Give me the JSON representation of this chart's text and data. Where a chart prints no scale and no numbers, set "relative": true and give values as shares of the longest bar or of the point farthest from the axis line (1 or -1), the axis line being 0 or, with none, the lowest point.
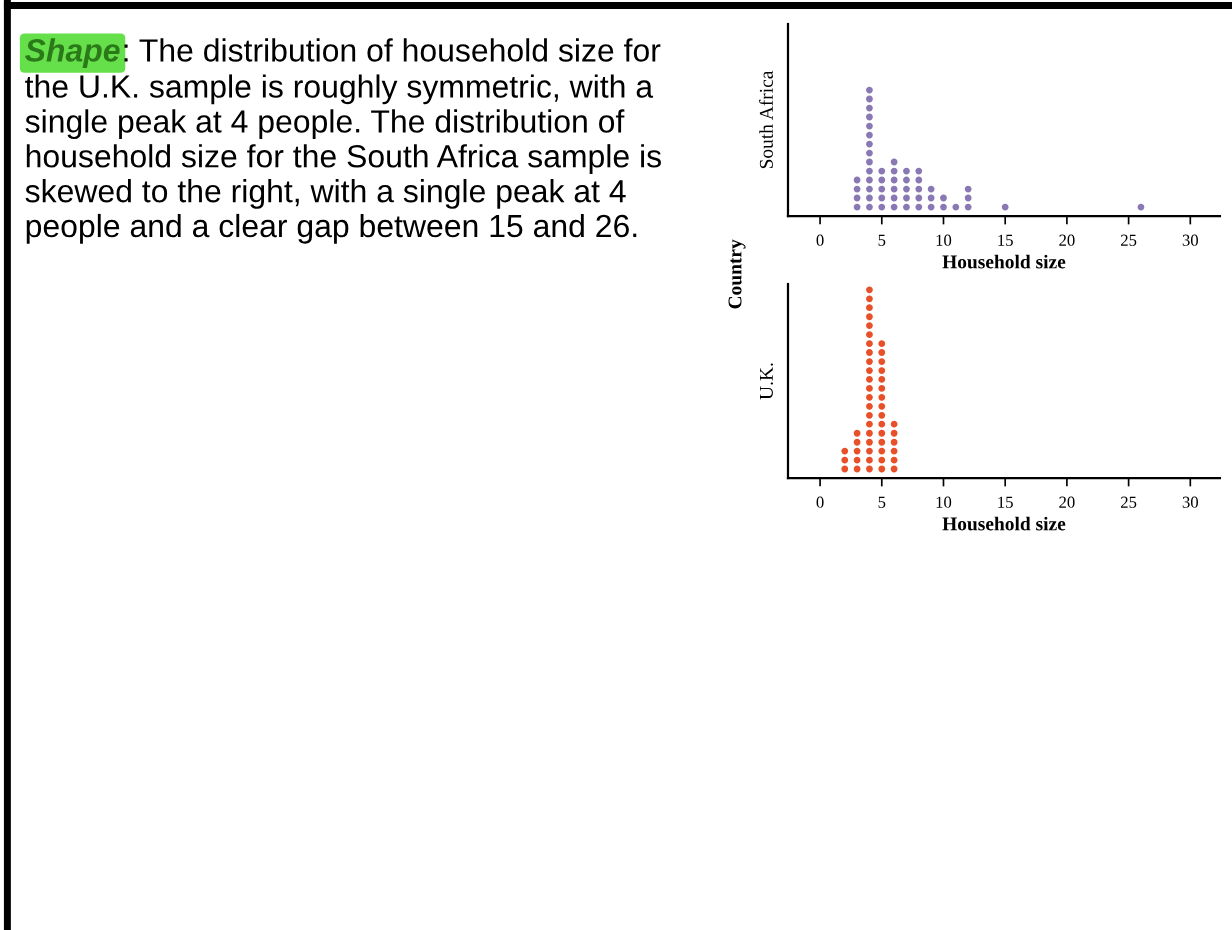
{
  "chart_data": [
    {
      "type": "scatter",
      "ylabel": "South Africa",
      "xlabel": "Household size",
      "xlim": [
        -2.6,
        32.4
      ],
      "xticks": [
        0,
        5,
        10,
        15,
        20,
        25,
        30
      ],
      "relative": true,
      "tick_labels": "x",
      "marker": "circle",
      "grid": false,
      "annotations": [
        "Shape",
        ": The distribution of household size for",
        "the U.K. sample is roughly symmetric, with a\nsingle peak at 4 people. The distribution of\nhousehold size for the South Africa sample is\nskewed to the right, with a single peak at 4\npeople and a clear gap between 15 and 26.",
        "Country"
      ],
      "series": [
        {
          "color": "#8a78b4",
          "x": [
            3,
            3,
            3,
            3,
            4,
            4,
            4,
            4,
            4,
            4,
            4,
            4,
            4,
            4,
            4,
            4,
            4,
            4,
            5,
            5,
            5,
            5,
            5,
            6,
            6,
            6,
            6,
            6,
            6,
            7,
            7,
            7,
            7,
            7,
            8,
            8,
            8,
            8,
            8,
            9,
            9,
            9,
            10,
            10,
            11,
            12,
            12,
            12,
            15,
            26
          ],
          "values": [
            0.071,
            0.143,
            0.214,
            0.286,
            0.071,
            0.143,
            0.214,
            0.286,
            0.357,
            0.429,
            0.5,
            0.571,
            0.643,
            0.714,
            0.786,
            0.857,
            0.929,
            1,
            0.071,
            0.143,
            0.214,
            0.286,
            0.357,
            0.071,
            0.143,
            0.214,
            0.286,
            0.357,
            0.429,
            0.071,
            0.143,
            0.214,
            0.286,
            0.357,
            0.071,
            0.143,
            0.214,
            0.286,
            0.357,
            0.071,
            0.143,
            0.214,
            0.071,
            0.143,
            0.071,
            0.071,
            0.143,
            0.214,
            0.071,
            0.071
          ]
        }
      ]
    },
    {
      "type": "scatter",
      "ylabel": "U.K.",
      "xlabel": "Household size",
      "xlim": [
        -2.6,
        32.4
      ],
      "xticks": [
        0,
        5,
        10,
        15,
        20,
        25,
        30
      ],
      "relative": true,
      "tick_labels": "x",
      "marker": "circle",
      "grid": false,
      "series": [
        {
          "color": "#e8502a",
          "x": [
            2,
            2,
            2,
            3,
            3,
            3,
            3,
            3,
            4,
            4,
            4,
            4,
            4,
            4,
            4,
            4,
            4,
            4,
            4,
            4,
            4,
            4,
            4,
            4,
            4,
            4,
            4,
            4,
            4,
            5,
            5,
            5,
            5,
            5,
            5,
            5,
            5,
            5,
            5,
            5,
            5,
            5,
            5,
            5,
            6,
            6,
            6,
            6,
            6,
            6
          ],
          "values": [
            0.048,
            0.095,
            0.143,
            0.048,
            0.095,
            0.143,
            0.19,
            0.238,
            0.048,
            0.095,
            0.143,
            0.19,
            0.238,
            0.286,
            0.333,
            0.381,
            0.429,
            0.476,
            0.524,
            0.571,
            0.619,
            0.667,
            0.714,
            0.762,
            0.81,
            0.857,
            0.905,
            0.952,
            1,
            0.048,
            0.095,
            0.143,
            0.19,
            0.238,
            0.286,
            0.333,
            0.381,
            0.429,
            0.476,
            0.524,
            0.571,
            0.619,
            0.667,
            0.714,
            0.048,
            0.095,
            0.143,
            0.19,
            0.238,
            0.286
          ]
        }
      ]
    }
  ]
}
